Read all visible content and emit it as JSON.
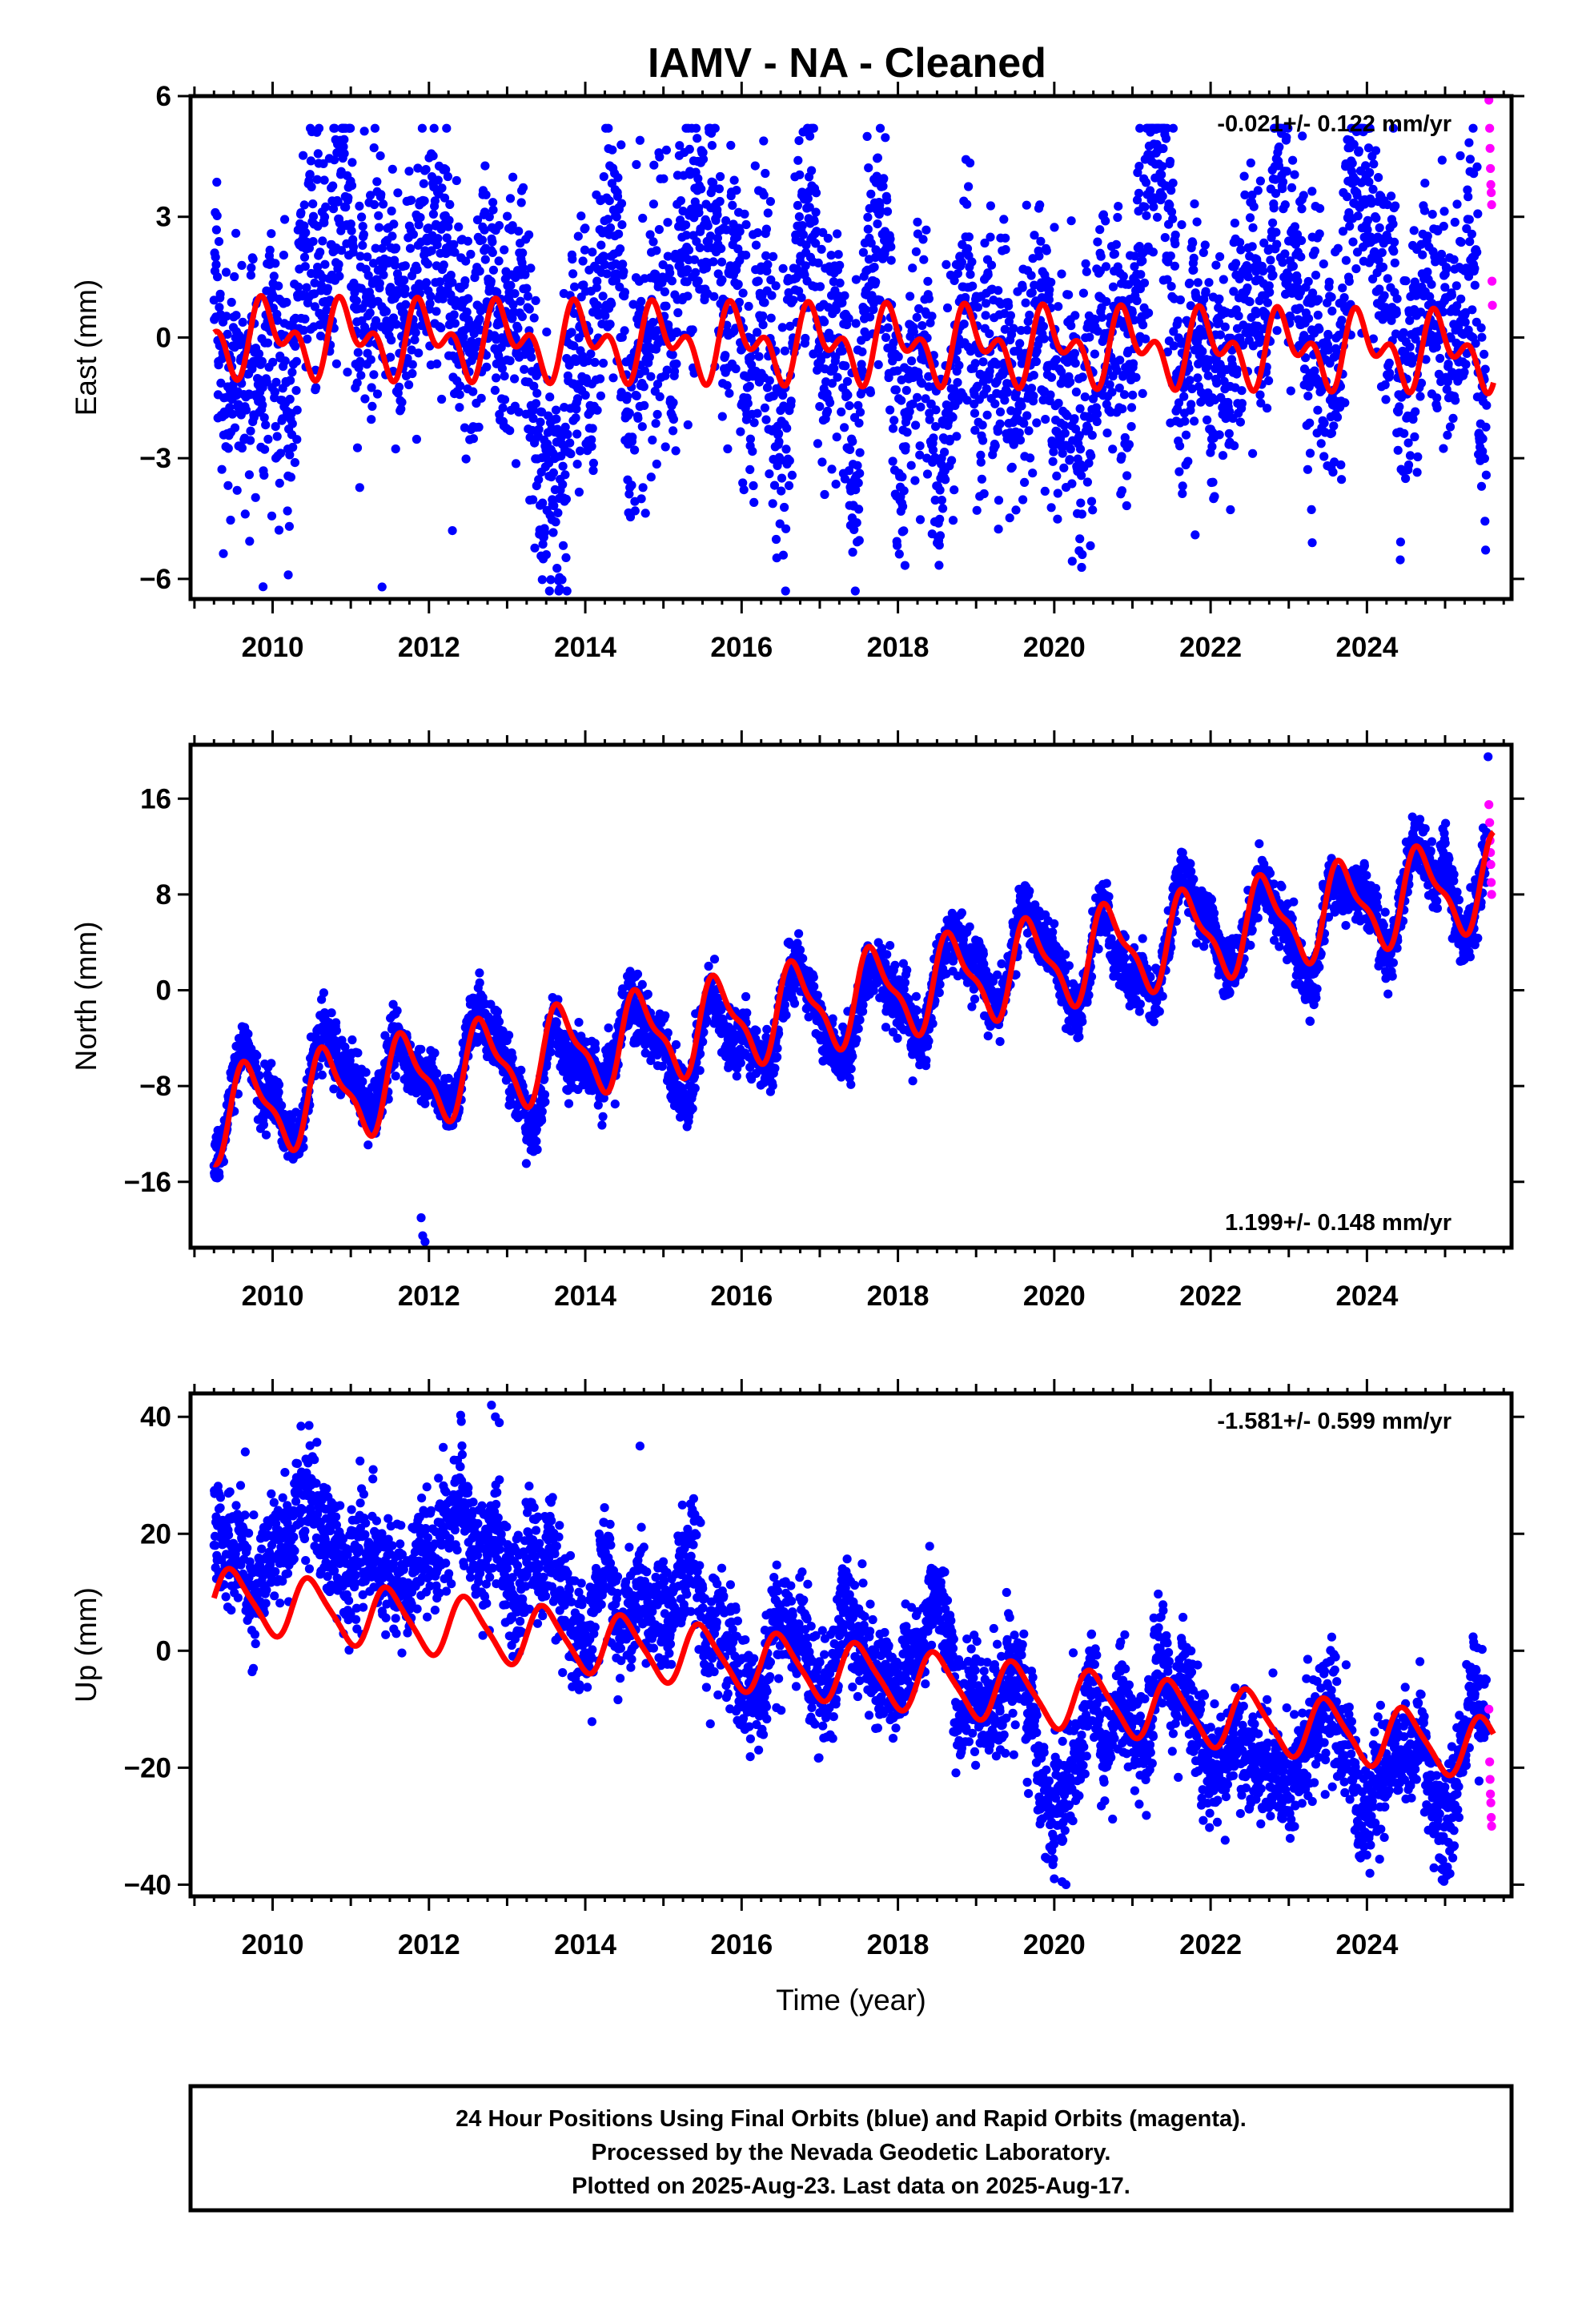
{
  "colors": {
    "final_orbits": "#0000ff",
    "rapid_orbits": "#ff00ff",
    "model_fit": "#ff0000",
    "frame": "#000000"
  },
  "chart_data": [
    {
      "type": "scatter",
      "title": "IAMV  - NA - Cleaned",
      "xlabel": "",
      "ylabel": "East (mm)",
      "xlim": [
        2008.95,
        2025.85
      ],
      "ylim": [
        -6.5,
        6.0
      ],
      "xticks": [
        2010,
        2012,
        2014,
        2016,
        2018,
        2020,
        2022,
        2024
      ],
      "yticks": [
        -6,
        -3,
        0,
        3,
        6
      ],
      "tick_labels": [
        "−6",
        "−3",
        "0",
        "3",
        "6"
      ],
      "rate_label": "-0.021+/- 0.122 mm/yr",
      "rate_position": "top-right",
      "series_final": {
        "start": 2009.25,
        "end": 2025.53,
        "step": 0.004,
        "trend_start": 0.0,
        "trend_end": 0.0,
        "spread": 1.45,
        "hf_amp": 0.9,
        "y_clip": [
          -6.3,
          5.2
        ]
      },
      "series_rapid": {
        "x": [
          2025.56,
          2025.57,
          2025.575,
          2025.58,
          2025.585,
          2025.59,
          2025.595,
          2025.6,
          2025.605
        ],
        "y": [
          5.9,
          5.2,
          4.7,
          4.2,
          3.8,
          3.6,
          3.3,
          1.4,
          0.8
        ]
      },
      "model_fit": {
        "start": 2009.25,
        "end": 2025.62,
        "offset": 0.0,
        "trend_per_yr": -0.021,
        "annual_amp": 0.65,
        "semiannual_amp": 0.55,
        "phase": 0.3
      },
      "outliers": {
        "x": [
          2009.3,
          2010.2,
          2011.4,
          2012.3,
          2014.7,
          2015.6,
          2023.3
        ],
        "y": [
          -2.0,
          -5.9,
          -6.2,
          -4.8,
          4.9,
          5.1,
          -5.1
        ]
      }
    },
    {
      "type": "scatter",
      "title": "",
      "xlabel": "",
      "ylabel": "North (mm)",
      "xlim": [
        2008.95,
        2025.85
      ],
      "ylim": [
        -21.5,
        20.5
      ],
      "xticks": [
        2010,
        2012,
        2014,
        2016,
        2018,
        2020,
        2022,
        2024
      ],
      "yticks": [
        -16,
        -8,
        0,
        8,
        16
      ],
      "tick_labels": [
        "−16",
        "−8",
        "0",
        "8",
        "16"
      ],
      "rate_label": "1.199+/- 0.148 mm/yr",
      "rate_position": "bottom-right",
      "series_final": {
        "start": 2009.25,
        "end": 2025.53,
        "step": 0.004,
        "trend_start": -10.5,
        "trend_end": 8.5,
        "spread": 1.2,
        "hf_amp": 0.6,
        "y_clip": [
          -21.0,
          19.5
        ]
      },
      "series_rapid": {
        "x": [
          2025.56,
          2025.57,
          2025.575,
          2025.58,
          2025.585,
          2025.59,
          2025.595
        ],
        "y": [
          15.5,
          14.0,
          12.5,
          11.5,
          10.5,
          9.0,
          8.0
        ]
      },
      "model_fit": {
        "start": 2009.25,
        "end": 2025.62,
        "offset": -10.5,
        "trend_per_yr": 1.199,
        "annual_amp": 3.5,
        "semiannual_amp": 1.2,
        "phase": 0.55
      },
      "outliers": {
        "x": [
          2011.9,
          2011.92,
          2011.95,
          2009.3,
          2025.55
        ],
        "y": [
          -19.0,
          -20.5,
          -21.0,
          -11.7,
          19.5
        ]
      }
    },
    {
      "type": "scatter",
      "title": "",
      "xlabel": "Time (year)",
      "ylabel": "Up (mm)",
      "xlim": [
        2008.95,
        2025.85
      ],
      "ylim": [
        -42.0,
        44.0
      ],
      "xticks": [
        2010,
        2012,
        2014,
        2016,
        2018,
        2020,
        2022,
        2024
      ],
      "yticks": [
        -40,
        -20,
        0,
        20,
        40
      ],
      "tick_labels": [
        "−40",
        "−20",
        "0",
        "20",
        "40"
      ],
      "rate_label": "-1.581+/- 0.599 mm/yr",
      "rate_position": "top-right",
      "series_final": {
        "start": 2009.25,
        "end": 2025.53,
        "step": 0.004,
        "trend_start": 14.0,
        "trend_end": -22.0,
        "step_change": {
          "at": 2018.7,
          "size": -14.0
        },
        "spread": 4.5,
        "hf_amp": 2.5,
        "y_clip": [
          -40.0,
          42.0
        ]
      },
      "series_rapid": {
        "x": [
          2025.56,
          2025.57,
          2025.575,
          2025.58,
          2025.585,
          2025.59,
          2025.595
        ],
        "y": [
          -10.0,
          -19.0,
          -22.0,
          -24.5,
          -26.0,
          -28.5,
          -30.0
        ]
      },
      "model_fit": {
        "start": 2009.25,
        "end": 2025.62,
        "offset": 9.0,
        "trend_per_yr": -1.581,
        "annual_amp": 5.0,
        "semiannual_amp": 1.0,
        "phase": 0.75
      },
      "outliers": {
        "x": [
          2012.8,
          2012.85,
          2012.9,
          2009.65,
          2014.7,
          2015.6,
          2020.0,
          2020.1
        ],
        "y": [
          42.0,
          40.0,
          39.0,
          34.0,
          35.0,
          -12.5,
          -39.0,
          -39.5
        ]
      }
    }
  ],
  "footer": {
    "line1": "24 Hour Positions Using Final Orbits (blue) and Rapid Orbits (magenta).",
    "line2": "Processed by the Nevada Geodetic Laboratory.",
    "line3": "Plotted on 2025-Aug-23. Last data on 2025-Aug-17."
  }
}
